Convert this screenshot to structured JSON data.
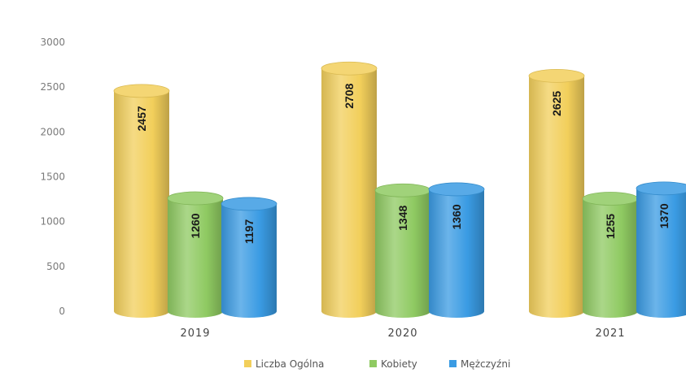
{
  "chart_data": {
    "type": "bar",
    "categories": [
      "2019",
      "2020",
      "2021"
    ],
    "series": [
      {
        "name": "Liczba Ogólna",
        "values": [
          2457,
          2708,
          2625
        ],
        "color": "#f2cf5b"
      },
      {
        "name": "Kobiety",
        "values": [
          1260,
          1348,
          1255
        ],
        "color": "#8fca62"
      },
      {
        "name": "Mężczyźni",
        "values": [
          1197,
          1360,
          1370
        ],
        "color": "#3a9be3"
      }
    ],
    "y_ticks": [
      0,
      500,
      1000,
      1500,
      2000,
      2500,
      3000
    ],
    "ylim": [
      0,
      3000
    ],
    "legend_position": "bottom",
    "grid": false,
    "bar_style": "3d-cylinder",
    "data_labels": "rotated-inside"
  }
}
